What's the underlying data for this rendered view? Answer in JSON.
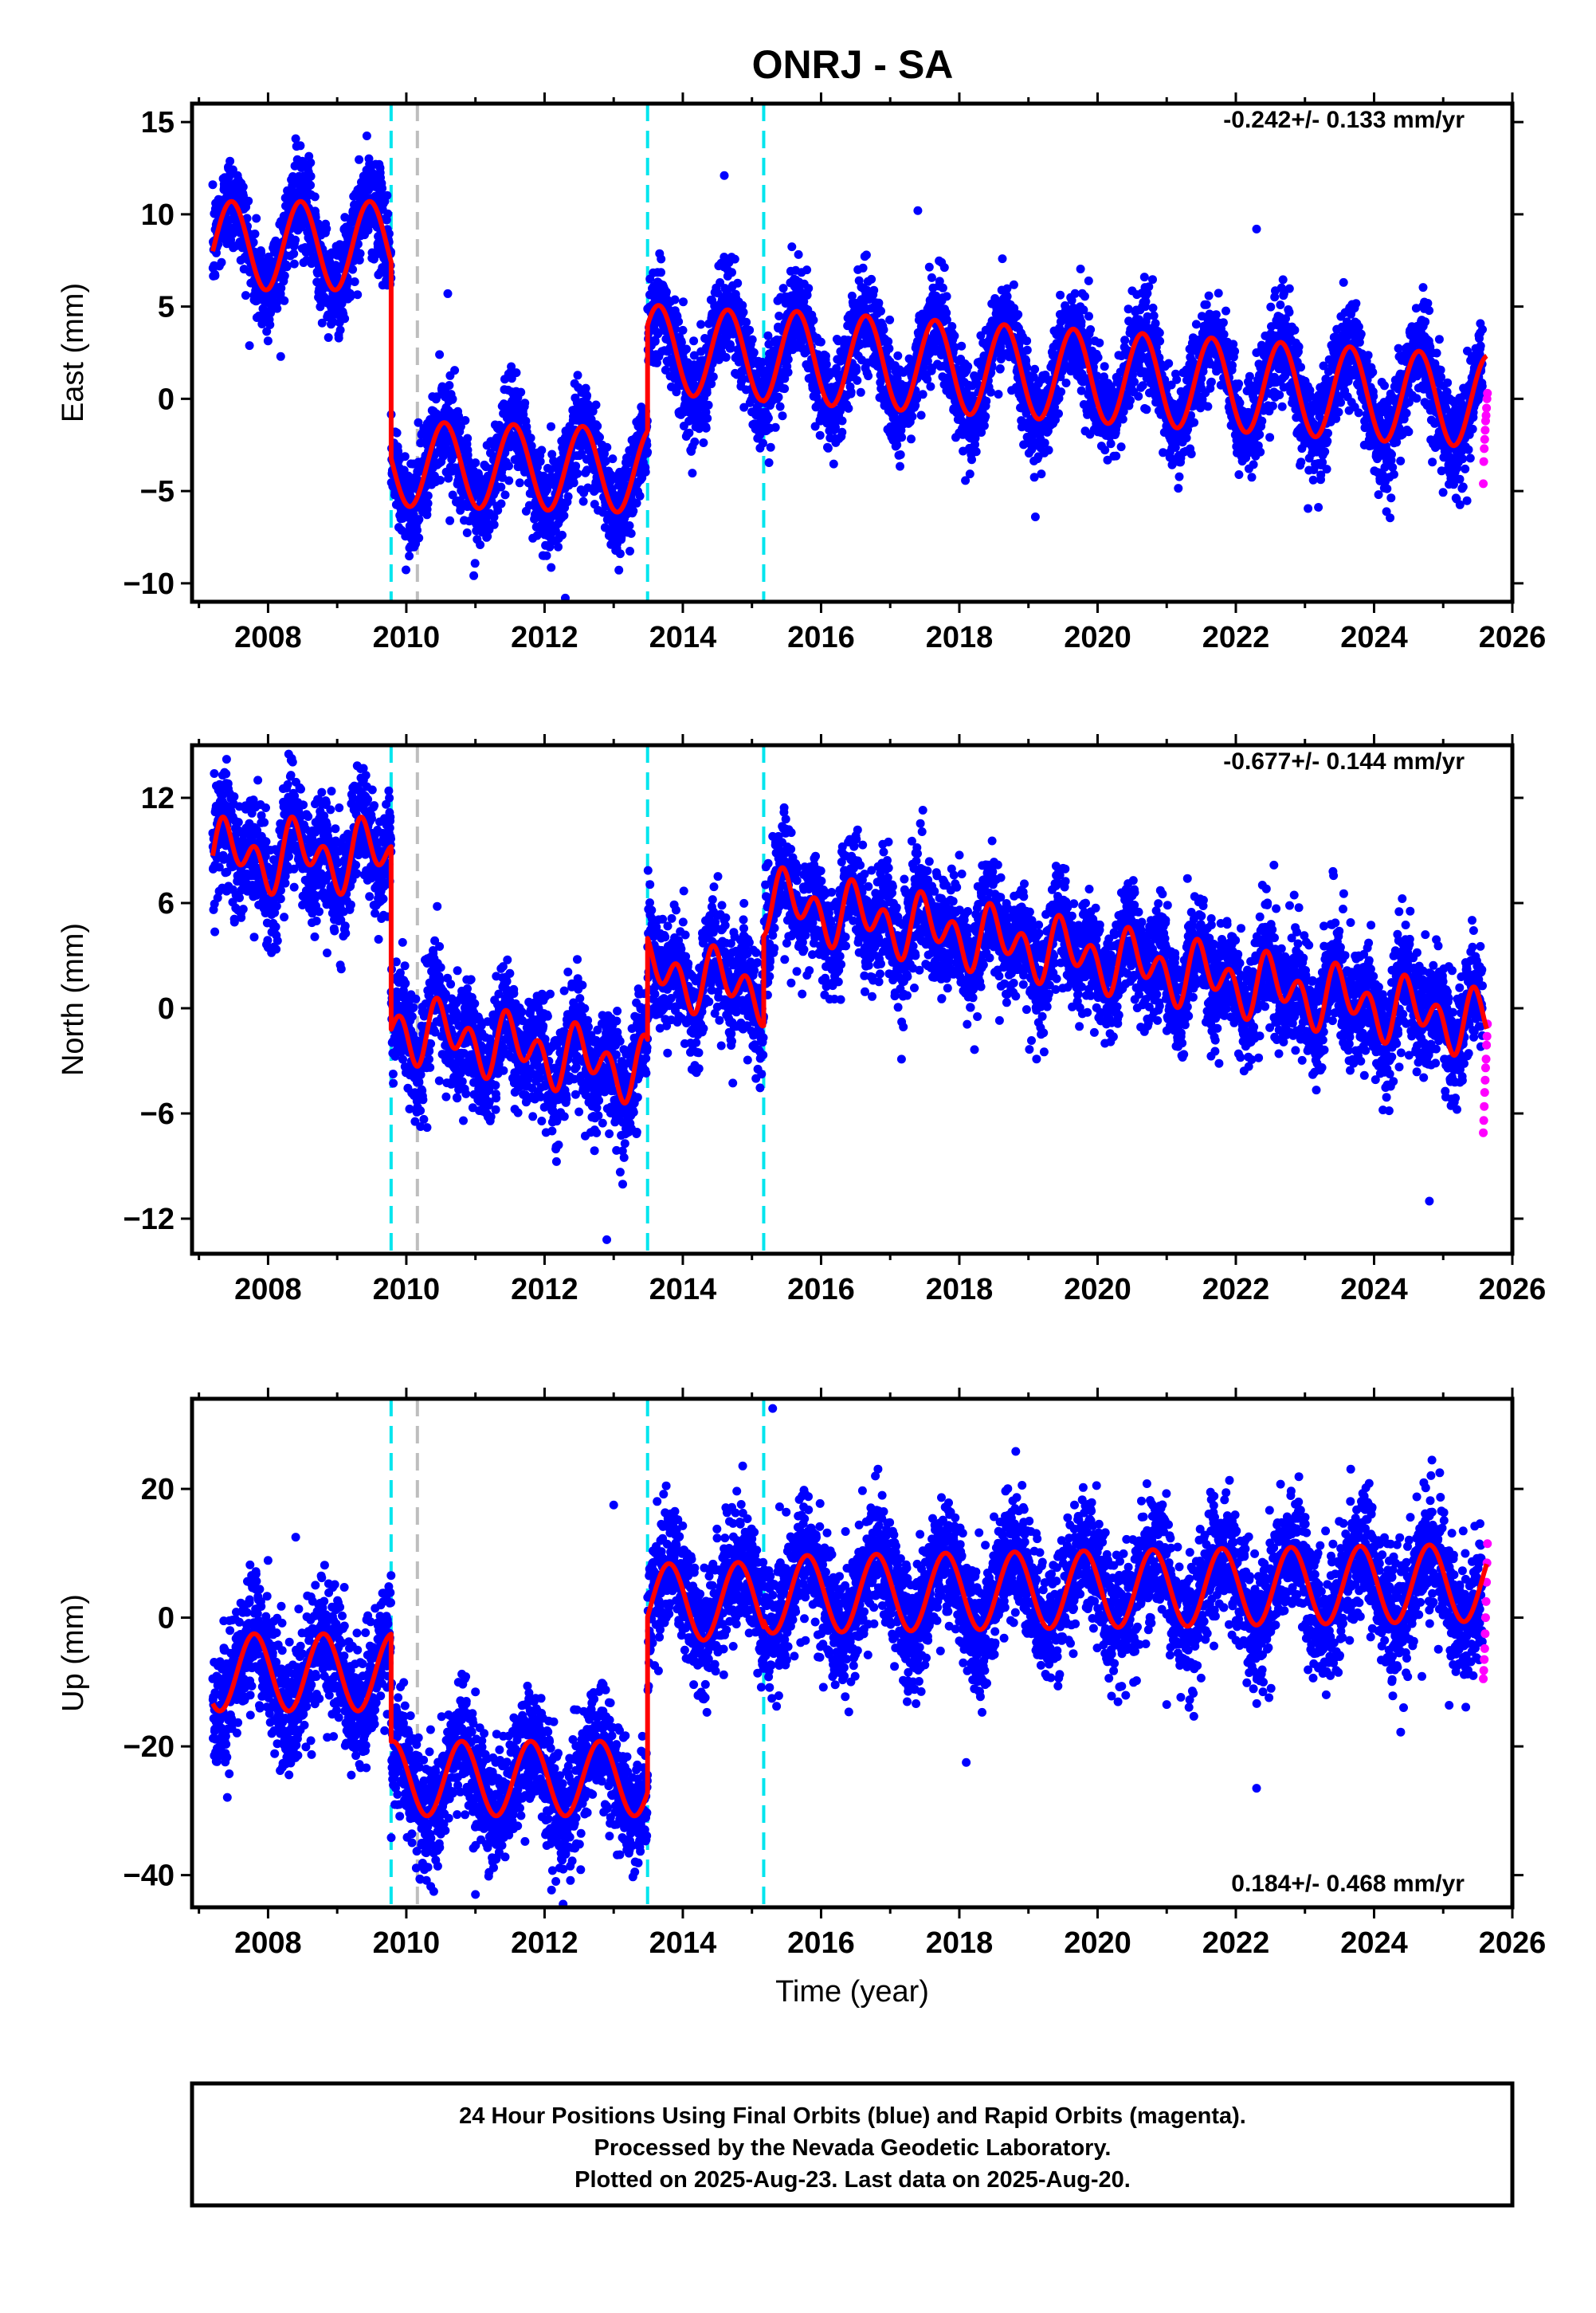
{
  "title": "ONRJ - SA",
  "colors": {
    "final_points": "#0000ff",
    "rapid_points": "#ff00ff",
    "model_fit": "#ff0000",
    "equipment_change": "#00e5ee",
    "earthquake_event": "#bebebe"
  },
  "chart_data": [
    {
      "type": "scatter",
      "name": "east",
      "ylabel": "East (mm)",
      "xlabel": "",
      "xlim": [
        2006.9,
        2026.0
      ],
      "ylim": [
        -11.0,
        16.0
      ],
      "xticks": [
        2008,
        2010,
        2012,
        2014,
        2016,
        2018,
        2020,
        2022,
        2024,
        2026
      ],
      "yticks": [
        -10,
        -5,
        0,
        5,
        10,
        15
      ],
      "yticks_labels": [
        "−10",
        "−5",
        "0",
        "5",
        "10",
        "15"
      ],
      "rate_text": "-0.242+/- 0.133 mm/yr",
      "rate_position": "top-right",
      "grid": false,
      "event_lines": {
        "cyan": [
          2009.78,
          2013.49,
          2015.17
        ],
        "gray": [
          2010.16
        ]
      },
      "fit_segments": [
        {
          "start": 2007.2,
          "end": 2009.78,
          "offset": 8.3,
          "trend": 0.0,
          "amp": 2.4,
          "phase": 0.22,
          "amp2": 0.0
        },
        {
          "start": 2009.78,
          "end": 2013.49,
          "offset": -3.7,
          "trend": -0.1,
          "amp": 2.3,
          "phase": 0.3,
          "amp2": 0.0
        },
        {
          "start": 2013.49,
          "end": 2015.17,
          "offset": 2.5,
          "trend": -0.24,
          "amp": 2.4,
          "phase": 0.4,
          "amp2": 0.0
        },
        {
          "start": 2015.17,
          "end": 2025.63,
          "offset": 1.1,
          "trend": -0.24,
          "amp": 2.5,
          "phase": 0.4,
          "amp2": 0.0
        }
      ],
      "noise": 1.3,
      "outliers": [
        [
          2014.6,
          12.1
        ],
        [
          2017.4,
          10.2
        ],
        [
          2022.3,
          9.2
        ],
        [
          2008.4,
          14.1
        ],
        [
          2010.6,
          5.7
        ],
        [
          2012.3,
          -10.8
        ],
        [
          2019.1,
          -6.4
        ]
      ],
      "rapid": {
        "start": 2025.58,
        "end": 2025.64,
        "values": [
          -4.6,
          -3.4,
          -2.7,
          -2.2,
          -1.7,
          -1.2,
          -0.9,
          -0.5,
          0.0,
          0.3
        ]
      }
    },
    {
      "type": "scatter",
      "name": "north",
      "ylabel": "North (mm)",
      "xlabel": "",
      "xlim": [
        2006.9,
        2026.0
      ],
      "ylim": [
        -14.0,
        15.0
      ],
      "xticks": [
        2008,
        2010,
        2012,
        2014,
        2016,
        2018,
        2020,
        2022,
        2024,
        2026
      ],
      "yticks": [
        -12,
        -6,
        0,
        6,
        12
      ],
      "yticks_labels": [
        "−12",
        "−6",
        "0",
        "6",
        "12"
      ],
      "rate_text": "-0.677+/- 0.144 mm/yr",
      "rate_position": "top-right",
      "grid": false,
      "event_lines": {
        "cyan": [
          2009.78,
          2013.49,
          2015.17
        ],
        "gray": [
          2010.16
        ]
      },
      "fit_segments": [
        {
          "start": 2007.2,
          "end": 2009.78,
          "offset": 8.7,
          "trend": 0.0,
          "amp": 1.2,
          "phase": 0.2,
          "amp2": 1.3
        },
        {
          "start": 2009.78,
          "end": 2013.49,
          "offset": -2.3,
          "trend": -0.7,
          "amp": 1.0,
          "phase": 0.3,
          "amp2": 1.3
        },
        {
          "start": 2013.49,
          "end": 2015.17,
          "offset": 1.6,
          "trend": -0.68,
          "amp": 1.0,
          "phase": 0.3,
          "amp2": 1.3
        },
        {
          "start": 2015.17,
          "end": 2025.63,
          "offset": 2.6,
          "trend": -0.68,
          "amp": 1.0,
          "phase": 0.3,
          "amp2": 1.3
        }
      ],
      "noise": 1.6,
      "outliers": [
        [
          2007.4,
          14.2
        ],
        [
          2015.3,
          9.8
        ],
        [
          2021.3,
          7.4
        ],
        [
          2012.9,
          -13.2
        ],
        [
          2024.8,
          -11.0
        ],
        [
          2010.3,
          -6.8
        ],
        [
          2016.8,
          6.5
        ]
      ],
      "rapid": {
        "start": 2025.58,
        "end": 2025.64,
        "values": [
          -7.1,
          -6.4,
          -5.6,
          -4.8,
          -4.1,
          -3.4,
          -2.9,
          -2.1,
          -1.6,
          -0.9
        ]
      }
    },
    {
      "type": "scatter",
      "name": "up",
      "ylabel": "Up (mm)",
      "xlabel": "Time (year)",
      "xlim": [
        2006.9,
        2026.0
      ],
      "ylim": [
        -45.0,
        34.0
      ],
      "xticks": [
        2008,
        2010,
        2012,
        2014,
        2016,
        2018,
        2020,
        2022,
        2024,
        2026
      ],
      "yticks": [
        -40,
        -20,
        0,
        20
      ],
      "yticks_labels": [
        "−40",
        "−20",
        "0",
        "20"
      ],
      "rate_text": "0.184+/- 0.468 mm/yr",
      "rate_position": "bottom-right",
      "grid": false,
      "event_lines": {
        "cyan": [
          2009.78,
          2013.49,
          2015.17
        ],
        "gray": [
          2010.16
        ]
      },
      "fit_segments": [
        {
          "start": 2007.2,
          "end": 2009.78,
          "offset": -8.5,
          "trend": 0.0,
          "amp": 6.0,
          "phase": 0.55,
          "amp2": 0.0
        },
        {
          "start": 2009.78,
          "end": 2013.49,
          "offset": -25.0,
          "trend": 0.0,
          "amp": 5.8,
          "phase": 0.55,
          "amp2": 0.0
        },
        {
          "start": 2013.49,
          "end": 2015.17,
          "offset": 2.5,
          "trend": 0.18,
          "amp": 6.0,
          "phase": 0.55,
          "amp2": 0.0
        },
        {
          "start": 2015.17,
          "end": 2025.63,
          "offset": 4.5,
          "trend": 0.18,
          "amp": 6.0,
          "phase": 0.55,
          "amp2": 0.0
        }
      ],
      "noise": 4.8,
      "outliers": [
        [
          2015.3,
          32.5
        ],
        [
          2018.1,
          -22.5
        ],
        [
          2022.3,
          -26.5
        ],
        [
          2008.4,
          12.5
        ],
        [
          2021.0,
          -13.5
        ],
        [
          2011.0,
          -43.0
        ],
        [
          2013.0,
          17.5
        ]
      ],
      "rapid": {
        "start": 2025.58,
        "end": 2025.64,
        "values": [
          -9.5,
          -8.2,
          -6.5,
          -4.8,
          -2.5,
          0.0,
          2.5,
          5.5,
          8.5,
          11.5
        ]
      }
    }
  ],
  "footer": {
    "line1": "24 Hour Positions Using Final Orbits (blue) and Rapid Orbits (magenta).",
    "line2": "Processed by the Nevada Geodetic Laboratory.",
    "line3": "Plotted on 2025-Aug-23. Last data on 2025-Aug-20."
  }
}
